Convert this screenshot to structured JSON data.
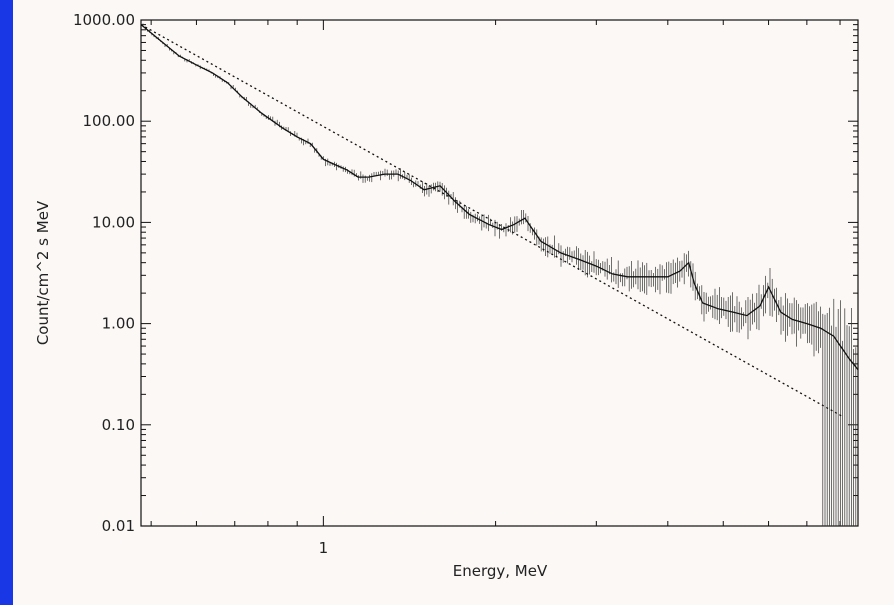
{
  "chart_data": {
    "type": "line",
    "title": "",
    "xlabel": "Energy, MeV",
    "ylabel": "Count/cm^2 s MeV",
    "x_scale": "log",
    "y_scale": "log",
    "xlim": [
      0.48,
      8.6
    ],
    "ylim": [
      0.01,
      1000
    ],
    "x_tick_labels": [
      {
        "value": 1,
        "label": "1"
      }
    ],
    "y_tick_labels": [
      {
        "value": 1000,
        "label": "1000.00"
      },
      {
        "value": 100,
        "label": "100.00"
      },
      {
        "value": 10,
        "label": "10.00"
      },
      {
        "value": 1,
        "label": "1.00"
      },
      {
        "value": 0.1,
        "label": "0.10"
      },
      {
        "value": 0.01,
        "label": "0.01"
      }
    ],
    "grid": false,
    "legend": "none",
    "series": [
      {
        "style": "solid",
        "x": [
          0.48,
          0.52,
          0.56,
          0.6,
          0.64,
          0.68,
          0.72,
          0.78,
          0.85,
          0.9,
          0.95,
          1.0,
          1.05,
          1.1,
          1.15,
          1.2,
          1.28,
          1.35,
          1.42,
          1.5,
          1.6,
          1.7,
          1.8,
          1.95,
          2.05,
          2.15,
          2.25,
          2.4,
          2.6,
          2.8,
          3.0,
          3.2,
          3.4,
          3.6,
          3.8,
          4.0,
          4.2,
          4.35,
          4.45,
          4.6,
          4.9,
          5.2,
          5.5,
          5.8,
          6.0,
          6.3,
          6.6,
          7.0,
          7.4,
          7.8,
          8.1,
          8.3,
          8.6
        ],
        "y": [
          900,
          620,
          440,
          360,
          300,
          240,
          175,
          120,
          85,
          70,
          60,
          42,
          37,
          33,
          28,
          28,
          30,
          30,
          26,
          21,
          23,
          16,
          12,
          9.5,
          8.5,
          9.5,
          11,
          6.5,
          5.0,
          4.3,
          3.7,
          3.1,
          2.9,
          2.9,
          2.9,
          2.9,
          3.3,
          4.0,
          2.5,
          1.6,
          1.4,
          1.3,
          1.2,
          1.5,
          2.3,
          1.3,
          1.1,
          1.0,
          0.9,
          0.75,
          0.55,
          0.45,
          0.35
        ]
      },
      {
        "style": "dotted",
        "x": [
          0.48,
          8.1
        ],
        "y": [
          900,
          0.12
        ]
      }
    ]
  }
}
